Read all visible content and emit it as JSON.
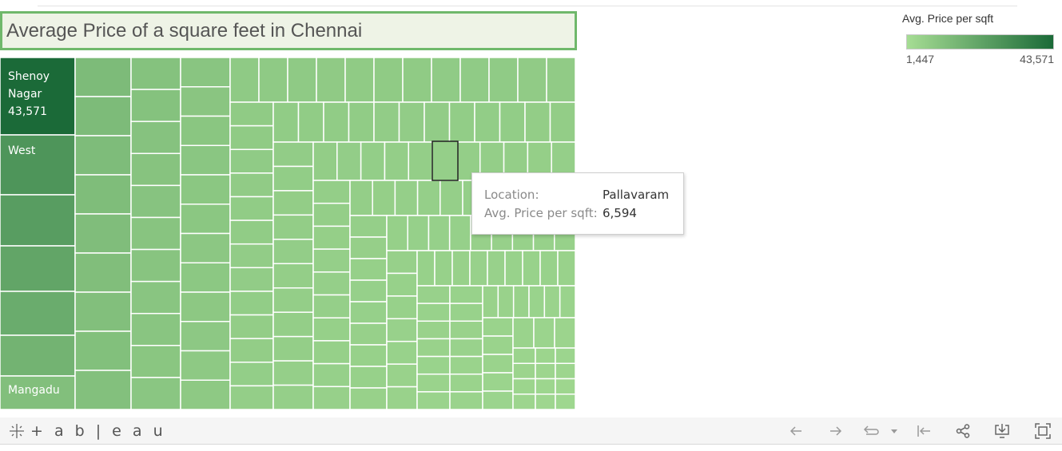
{
  "title": "Average Price of a square feet in Chennai",
  "legend": {
    "title": "Avg. Price per sqft",
    "min_label": "1,447",
    "max_label": "43,571",
    "color_low": "#a6dd94",
    "color_high": "#1b6a38"
  },
  "tooltip": {
    "location_label": "Location:",
    "location_value": "Pallavaram",
    "price_label": "Avg. Price per sqft:",
    "price_value": "6,594"
  },
  "brand": {
    "wordmark": "+ a b | e a u"
  },
  "toolbar": {
    "icons": [
      "undo-icon",
      "redo-icon",
      "revert-icon",
      "revert-dropdown-icon",
      "reset-to-start-icon",
      "share-icon",
      "download-icon",
      "fullscreen-icon"
    ]
  },
  "chart_data": {
    "type": "heatmap",
    "subtype": "treemap",
    "title": "Average Price of a square feet in Chennai",
    "measure": "Avg. Price per sqft",
    "color_range": [
      1447,
      43571
    ],
    "labeled_tiles": [
      {
        "location": "Shenoy Nagar",
        "label_lines": [
          "Shenoy",
          "Nagar"
        ],
        "value_label": "43,571",
        "value": 43571
      },
      {
        "location": "West",
        "label_lines": [
          "West"
        ],
        "value_label": "",
        "value": 28000
      },
      {
        "location": "Mangadu",
        "label_lines": [
          "Mangadu"
        ],
        "value_label": "",
        "value": 12500
      }
    ],
    "highlighted": {
      "location": "Pallavaram",
      "value": 6594
    }
  }
}
